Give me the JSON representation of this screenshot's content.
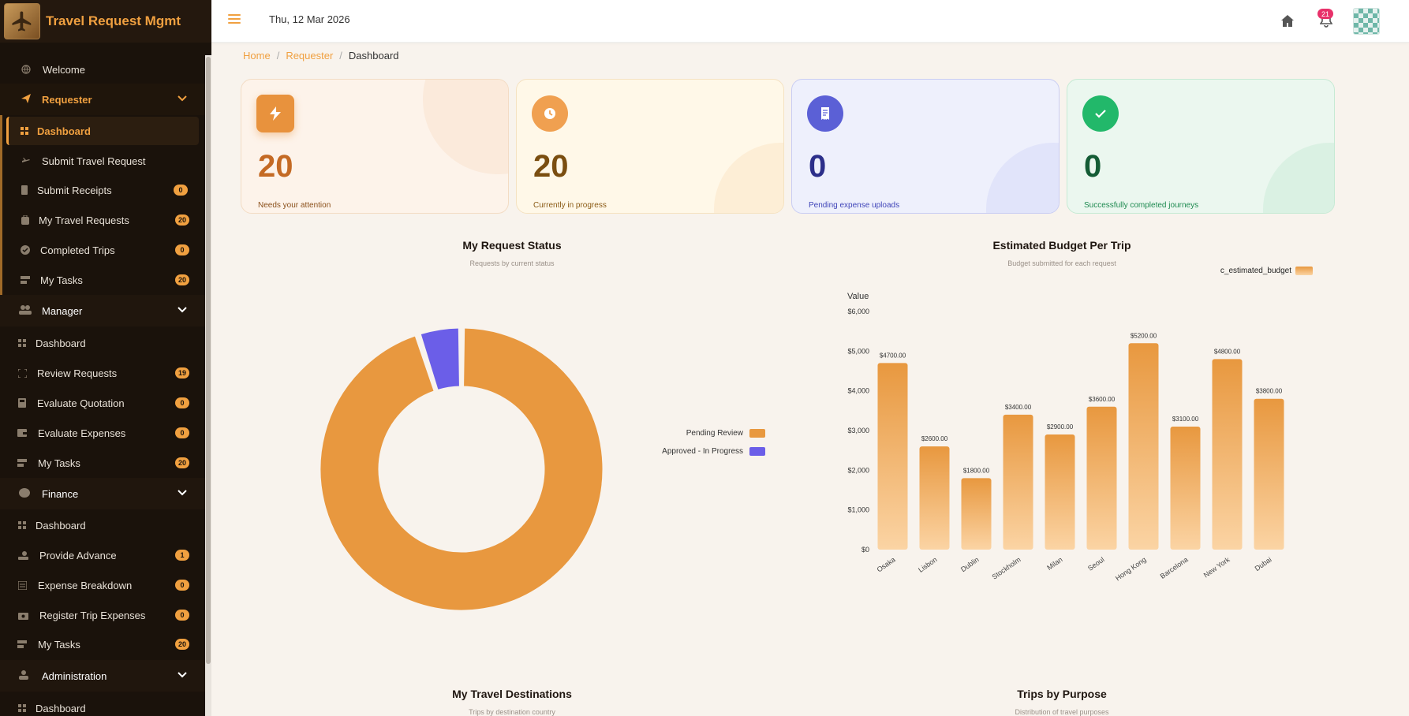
{
  "app": {
    "title": "Travel Request Mgmt"
  },
  "topbar": {
    "date": "Thu, 12 Mar 2026",
    "notifications": "21"
  },
  "breadcrumb": {
    "home": "Home",
    "requester": "Requester",
    "current": "Dashboard"
  },
  "sidebar": {
    "welcome": "Welcome",
    "requester": {
      "label": "Requester",
      "items": [
        {
          "label": "Dashboard",
          "badge": ""
        },
        {
          "label": "Submit Travel Request",
          "badge": ""
        },
        {
          "label": "Submit Receipts",
          "badge": "0"
        },
        {
          "label": "My Travel Requests",
          "badge": "20"
        },
        {
          "label": "Completed Trips",
          "badge": "0"
        },
        {
          "label": "My Tasks",
          "badge": "20"
        }
      ]
    },
    "manager": {
      "label": "Manager",
      "items": [
        {
          "label": "Dashboard",
          "badge": ""
        },
        {
          "label": "Review Requests",
          "badge": "19"
        },
        {
          "label": "Evaluate Quotation",
          "badge": "0"
        },
        {
          "label": "Evaluate Expenses",
          "badge": "0"
        },
        {
          "label": "My Tasks",
          "badge": "20"
        }
      ]
    },
    "finance": {
      "label": "Finance",
      "items": [
        {
          "label": "Dashboard",
          "badge": ""
        },
        {
          "label": "Provide Advance",
          "badge": "1"
        },
        {
          "label": "Expense Breakdown",
          "badge": "0"
        },
        {
          "label": "Register Trip Expenses",
          "badge": "0"
        },
        {
          "label": "My Tasks",
          "badge": "20"
        }
      ]
    },
    "administration": {
      "label": "Administration",
      "items": [
        {
          "label": "Dashboard",
          "badge": ""
        }
      ]
    }
  },
  "cards": [
    {
      "value": "20",
      "label": "Needs your attention",
      "icon": "bolt-icon",
      "accent": "#e8923d"
    },
    {
      "value": "20",
      "label": "Currently in progress",
      "icon": "clock-icon",
      "accent": "#f0a050"
    },
    {
      "value": "0",
      "label": "Pending expense uploads",
      "icon": "receipt-icon",
      "accent": "#5b60d6"
    },
    {
      "value": "0",
      "label": "Successfully completed journeys",
      "icon": "check-icon",
      "accent": "#22b86a"
    }
  ],
  "charts": {
    "status": {
      "title": "My Request Status",
      "subtitle": "Requests by current status"
    },
    "budget": {
      "title": "Estimated Budget Per Trip",
      "subtitle": "Budget submitted for each request"
    },
    "destinations": {
      "title": "My Travel Destinations",
      "subtitle": "Trips by destination country"
    },
    "purpose": {
      "title": "Trips by Purpose",
      "subtitle": "Distribution of travel purposes"
    }
  },
  "chart_data": [
    {
      "type": "pie",
      "title": "My Request Status",
      "subtitle": "Requests by current status",
      "categories": [
        "Pending Review",
        "Approved - In Progress"
      ],
      "values": [
        19,
        1
      ],
      "colors": [
        "#e8983f",
        "#6b5ee8"
      ],
      "legend": "right"
    },
    {
      "type": "bar",
      "title": "Estimated Budget Per Trip",
      "subtitle": "Budget submitted for each request",
      "ylabel": "Value",
      "categories": [
        "Osaka",
        "Lisbon",
        "Dublin",
        "Stockholm",
        "Milan",
        "Seoul",
        "Hong Kong",
        "Barcelona",
        "New York",
        "Dubai"
      ],
      "series": [
        {
          "name": "c_estimated_budget",
          "values": [
            4700,
            2600,
            1800,
            3400,
            2900,
            3600,
            5200,
            3100,
            4800,
            3800
          ]
        }
      ],
      "data_labels": [
        "$4700.00",
        "$2600.00",
        "$1800.00",
        "$3400.00",
        "$2900.00",
        "$3600.00",
        "$5200.00",
        "$3100.00",
        "$4800.00",
        "$3800.00"
      ],
      "yticks": [
        "$0",
        "$1,000",
        "$2,000",
        "$3,000",
        "$4,000",
        "$5,000",
        "$6,000"
      ],
      "ylim": [
        0,
        6000
      ],
      "color": "#eba258",
      "legend": "top-right"
    }
  ]
}
